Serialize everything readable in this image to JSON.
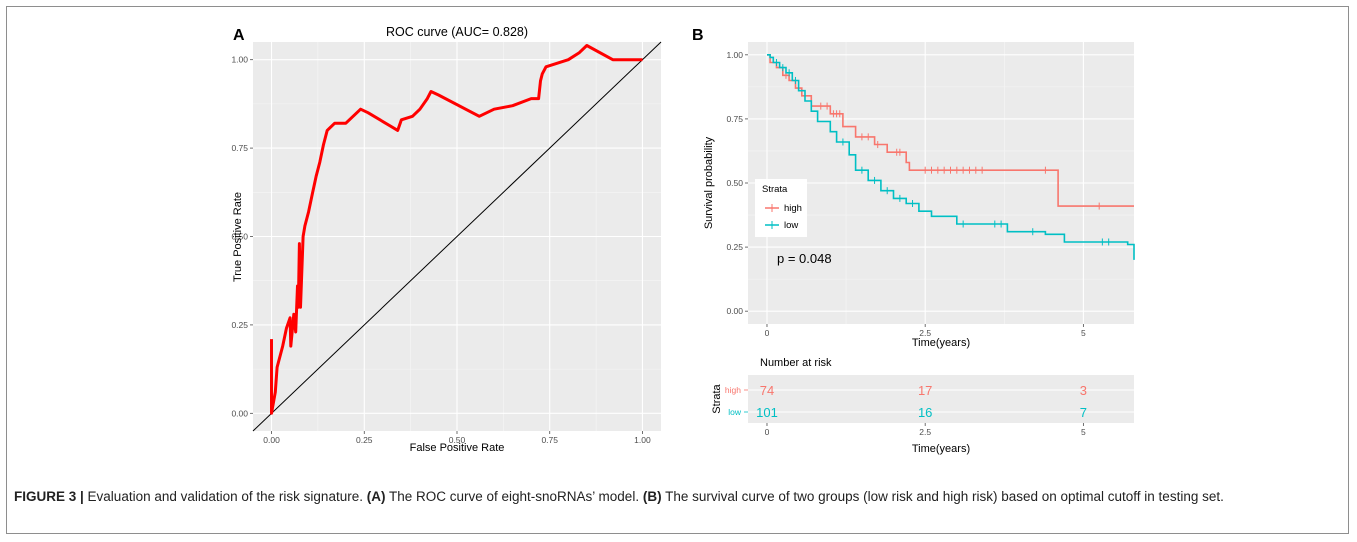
{
  "figure": {
    "label_prefix": "FIGURE 3 |",
    "caption_text": " Evaluation and validation of the risk signature. ",
    "caption_a": "(A)",
    "caption_a_text": " The ROC curve of eight-snoRNAs’ model. ",
    "caption_b": "(B)",
    "caption_b_text": " The survival curve of two groups (low risk and high risk) based on optimal cutoff in testing set."
  },
  "chart_data": [
    {
      "panel": "A",
      "type": "line",
      "title": "ROC curve (AUC= 0.828)",
      "xlabel": "False Positive Rate",
      "ylabel": "True Positive Rate",
      "xlim": [
        -0.05,
        1.05
      ],
      "ylim": [
        -0.05,
        1.05
      ],
      "xticks": [
        "0.00",
        "0.25",
        "0.50",
        "0.75",
        "1.00"
      ],
      "yticks": [
        "0.00",
        "0.25",
        "0.50",
        "0.75",
        "1.00"
      ],
      "grid": true,
      "colors": {
        "roc": "#ff0000",
        "reference": "#000000",
        "panel_bg": "#ebebeb"
      },
      "series": [
        {
          "points": [
            [
              0.0,
              0.21
            ],
            [
              0.0,
              0.0
            ],
            [
              0.01,
              0.06
            ],
            [
              0.015,
              0.13
            ],
            [
              0.03,
              0.19
            ],
            [
              0.04,
              0.24
            ],
            [
              0.05,
              0.27
            ],
            [
              0.052,
              0.19
            ],
            [
              0.06,
              0.28
            ],
            [
              0.065,
              0.23
            ],
            [
              0.07,
              0.36
            ],
            [
              0.072,
              0.3
            ],
            [
              0.075,
              0.48
            ],
            [
              0.078,
              0.3
            ],
            [
              0.085,
              0.5
            ],
            [
              0.09,
              0.53
            ],
            [
              0.1,
              0.57
            ],
            [
              0.11,
              0.62
            ],
            [
              0.12,
              0.67
            ],
            [
              0.13,
              0.71
            ],
            [
              0.14,
              0.76
            ],
            [
              0.15,
              0.8
            ],
            [
              0.17,
              0.82
            ],
            [
              0.2,
              0.82
            ],
            [
              0.24,
              0.86
            ],
            [
              0.26,
              0.85
            ],
            [
              0.34,
              0.8
            ],
            [
              0.35,
              0.83
            ],
            [
              0.38,
              0.84
            ],
            [
              0.4,
              0.86
            ],
            [
              0.42,
              0.89
            ],
            [
              0.43,
              0.91
            ],
            [
              0.45,
              0.9
            ],
            [
              0.56,
              0.84
            ],
            [
              0.6,
              0.86
            ],
            [
              0.65,
              0.87
            ],
            [
              0.7,
              0.89
            ],
            [
              0.72,
              0.89
            ],
            [
              0.725,
              0.94
            ],
            [
              0.73,
              0.96
            ],
            [
              0.74,
              0.98
            ],
            [
              0.8,
              1.0
            ],
            [
              0.83,
              1.02
            ],
            [
              0.85,
              1.04
            ],
            [
              0.92,
              1.0
            ],
            [
              0.97,
              1.0
            ],
            [
              1.0,
              1.0
            ]
          ]
        },
        {
          "name": "reference",
          "points": [
            [
              -0.05,
              -0.05
            ],
            [
              1.05,
              1.05
            ]
          ]
        }
      ]
    },
    {
      "panel": "B",
      "type": "line",
      "xlabel": "Time(years)",
      "ylabel": "Survival probability",
      "xlim": [
        -0.3,
        5.8
      ],
      "ylim": [
        -0.05,
        1.05
      ],
      "xticks": [
        "0",
        "2.5",
        "5"
      ],
      "yticks": [
        "0.00",
        "0.25",
        "0.50",
        "0.75",
        "1.00"
      ],
      "grid": true,
      "legend": {
        "title": "Strata",
        "position": "inside-left"
      },
      "annotation": "p = 0.048",
      "series": [
        {
          "name": "high",
          "color": "#f8766d",
          "steps": [
            [
              0,
              1.0
            ],
            [
              0.05,
              0.97
            ],
            [
              0.15,
              0.95
            ],
            [
              0.25,
              0.92
            ],
            [
              0.35,
              0.9
            ],
            [
              0.45,
              0.87
            ],
            [
              0.55,
              0.84
            ],
            [
              0.7,
              0.8
            ],
            [
              1.0,
              0.77
            ],
            [
              1.2,
              0.72
            ],
            [
              1.4,
              0.68
            ],
            [
              1.7,
              0.65
            ],
            [
              1.9,
              0.62
            ],
            [
              2.2,
              0.58
            ],
            [
              2.25,
              0.55
            ],
            [
              4.6,
              0.55
            ],
            [
              4.6,
              0.41
            ],
            [
              5.8,
              0.41
            ]
          ],
          "censors": [
            [
              0.3,
              0.92
            ],
            [
              0.6,
              0.84
            ],
            [
              0.85,
              0.8
            ],
            [
              0.95,
              0.8
            ],
            [
              1.05,
              0.77
            ],
            [
              1.1,
              0.77
            ],
            [
              1.15,
              0.77
            ],
            [
              1.5,
              0.68
            ],
            [
              1.6,
              0.68
            ],
            [
              1.75,
              0.65
            ],
            [
              2.05,
              0.62
            ],
            [
              2.1,
              0.62
            ],
            [
              2.5,
              0.55
            ],
            [
              2.6,
              0.55
            ],
            [
              2.7,
              0.55
            ],
            [
              2.8,
              0.55
            ],
            [
              2.9,
              0.55
            ],
            [
              3.0,
              0.55
            ],
            [
              3.1,
              0.55
            ],
            [
              3.2,
              0.55
            ],
            [
              3.3,
              0.55
            ],
            [
              3.4,
              0.55
            ],
            [
              4.4,
              0.55
            ],
            [
              5.25,
              0.41
            ]
          ]
        },
        {
          "name": "low",
          "color": "#00bfc4",
          "steps": [
            [
              0,
              1.0
            ],
            [
              0.05,
              0.99
            ],
            [
              0.1,
              0.97
            ],
            [
              0.2,
              0.95
            ],
            [
              0.3,
              0.93
            ],
            [
              0.4,
              0.9
            ],
            [
              0.5,
              0.86
            ],
            [
              0.6,
              0.82
            ],
            [
              0.7,
              0.78
            ],
            [
              0.8,
              0.74
            ],
            [
              1.0,
              0.7
            ],
            [
              1.1,
              0.66
            ],
            [
              1.3,
              0.61
            ],
            [
              1.4,
              0.55
            ],
            [
              1.6,
              0.51
            ],
            [
              1.8,
              0.47
            ],
            [
              2.0,
              0.44
            ],
            [
              2.2,
              0.42
            ],
            [
              2.4,
              0.39
            ],
            [
              2.6,
              0.37
            ],
            [
              3.0,
              0.34
            ],
            [
              3.8,
              0.31
            ],
            [
              4.4,
              0.3
            ],
            [
              4.7,
              0.27
            ],
            [
              5.7,
              0.26
            ],
            [
              5.8,
              0.2
            ]
          ],
          "censors": [
            [
              0.15,
              0.97
            ],
            [
              0.25,
              0.95
            ],
            [
              0.35,
              0.93
            ],
            [
              0.45,
              0.9
            ],
            [
              1.2,
              0.66
            ],
            [
              1.5,
              0.55
            ],
            [
              1.7,
              0.51
            ],
            [
              1.9,
              0.47
            ],
            [
              2.1,
              0.44
            ],
            [
              2.3,
              0.42
            ],
            [
              3.1,
              0.34
            ],
            [
              3.6,
              0.34
            ],
            [
              3.7,
              0.34
            ],
            [
              4.2,
              0.31
            ],
            [
              5.3,
              0.27
            ],
            [
              5.4,
              0.27
            ]
          ]
        }
      ]
    },
    {
      "panel": "B-risk-table",
      "type": "table",
      "title": "Number at risk",
      "xlabel": "Time(years)",
      "ylabel": "Strata",
      "xticks": [
        "0",
        "2.5",
        "5"
      ],
      "times": [
        0,
        2.5,
        5
      ],
      "rows": [
        {
          "name": "high",
          "color": "#f8766d",
          "values": [
            "74",
            "17",
            "3"
          ]
        },
        {
          "name": "low",
          "color": "#00bfc4",
          "values": [
            "101",
            "16",
            "7"
          ]
        }
      ]
    }
  ]
}
